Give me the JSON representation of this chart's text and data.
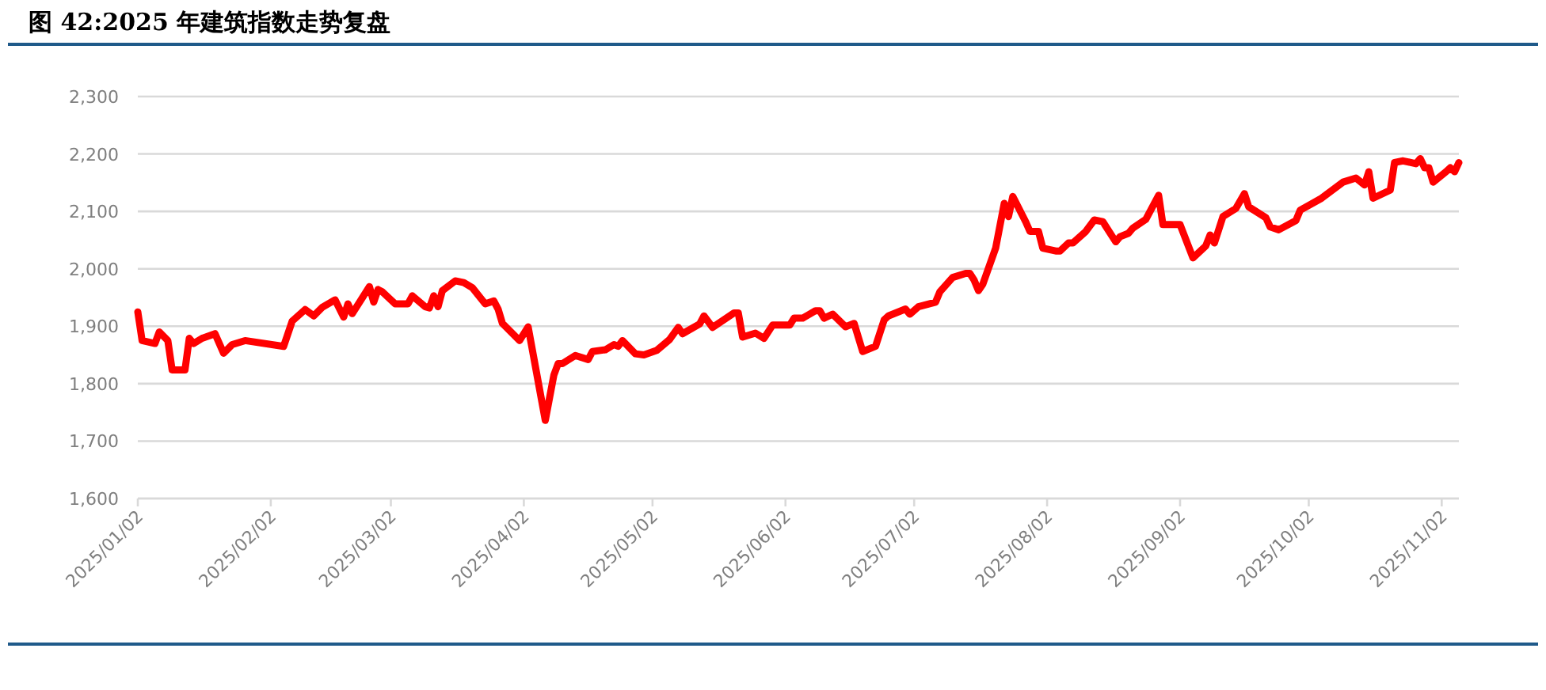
{
  "chart_data": {
    "type": "line",
    "title": "图 42:2025 年建筑指数走势复盘",
    "x": [
      "2025-01-02",
      "2025-01-03",
      "2025-01-06",
      "2025-01-07",
      "2025-01-09",
      "2025-01-10",
      "2025-01-13",
      "2025-01-14",
      "2025-01-15",
      "2025-01-17",
      "2025-01-20",
      "2025-01-22",
      "2025-01-24",
      "2025-01-27",
      "2025-02-05",
      "2025-02-07",
      "2025-02-10",
      "2025-02-12",
      "2025-02-14",
      "2025-02-17",
      "2025-02-19",
      "2025-02-20",
      "2025-02-21",
      "2025-02-25",
      "2025-02-26",
      "2025-02-27",
      "2025-02-28",
      "2025-03-03",
      "2025-03-06",
      "2025-03-07",
      "2025-03-10",
      "2025-03-11",
      "2025-03-12",
      "2025-03-13",
      "2025-03-14",
      "2025-03-17",
      "2025-03-19",
      "2025-03-21",
      "2025-03-24",
      "2025-03-26",
      "2025-03-27",
      "2025-03-28",
      "2025-04-01",
      "2025-04-03",
      "2025-04-07",
      "2025-04-09",
      "2025-04-10",
      "2025-04-11",
      "2025-04-14",
      "2025-04-17",
      "2025-04-18",
      "2025-04-21",
      "2025-04-23",
      "2025-04-24",
      "2025-04-25",
      "2025-04-28",
      "2025-04-30",
      "2025-05-03",
      "2025-05-06",
      "2025-05-08",
      "2025-05-09",
      "2025-05-13",
      "2025-05-14",
      "2025-05-16",
      "2025-05-21",
      "2025-05-22",
      "2025-05-23",
      "2025-05-26",
      "2025-05-28",
      "2025-05-30",
      "2025-06-03",
      "2025-06-04",
      "2025-06-06",
      "2025-06-09",
      "2025-06-10",
      "2025-06-11",
      "2025-06-13",
      "2025-06-16",
      "2025-06-18",
      "2025-06-20",
      "2025-06-23",
      "2025-06-25",
      "2025-06-26",
      "2025-06-30",
      "2025-07-01",
      "2025-07-03",
      "2025-07-07",
      "2025-07-08",
      "2025-07-11",
      "2025-07-14",
      "2025-07-15",
      "2025-07-16",
      "2025-07-17",
      "2025-07-18",
      "2025-07-21",
      "2025-07-23",
      "2025-07-24",
      "2025-07-25",
      "2025-07-28",
      "2025-07-29",
      "2025-07-31",
      "2025-08-01",
      "2025-08-04",
      "2025-08-05",
      "2025-08-07",
      "2025-08-08",
      "2025-08-11",
      "2025-08-13",
      "2025-08-15",
      "2025-08-18",
      "2025-08-19",
      "2025-08-21",
      "2025-08-22",
      "2025-08-25",
      "2025-08-28",
      "2025-08-29",
      "2025-09-01",
      "2025-09-02",
      "2025-09-05",
      "2025-09-08",
      "2025-09-09",
      "2025-09-10",
      "2025-09-12",
      "2025-09-15",
      "2025-09-17",
      "2025-09-18",
      "2025-09-22",
      "2025-09-23",
      "2025-09-25",
      "2025-09-29",
      "2025-09-30",
      "2025-10-05",
      "2025-10-10",
      "2025-10-13",
      "2025-10-15",
      "2025-10-16",
      "2025-10-17",
      "2025-10-21",
      "2025-10-22",
      "2025-10-24",
      "2025-10-27",
      "2025-10-28",
      "2025-10-29",
      "2025-10-30",
      "2025-10-31",
      "2025-11-03",
      "2025-11-04",
      "2025-11-05",
      "2025-11-06"
    ],
    "series": [
      {
        "color": "#ff0000",
        "values": [
          1925,
          1875,
          1870,
          1890,
          1875,
          1824,
          1824,
          1879,
          1870,
          1879,
          1887,
          1853,
          1868,
          1875,
          1865,
          1909,
          1929,
          1918,
          1933,
          1946,
          1916,
          1939,
          1922,
          1969,
          1942,
          1964,
          1960,
          1939,
          1939,
          1953,
          1934,
          1932,
          1953,
          1934,
          1962,
          1979,
          1976,
          1967,
          1939,
          1944,
          1930,
          1905,
          1875,
          1899,
          1736,
          1815,
          1835,
          1835,
          1849,
          1842,
          1856,
          1859,
          1868,
          1865,
          1875,
          1852,
          1850,
          1858,
          1877,
          1898,
          1887,
          1904,
          1918,
          1898,
          1923,
          1923,
          1881,
          1888,
          1879,
          1902,
          1902,
          1914,
          1914,
          1927,
          1927,
          1914,
          1921,
          1899,
          1905,
          1856,
          1865,
          1911,
          1918,
          1930,
          1921,
          1934,
          1942,
          1960,
          1985,
          1992,
          1992,
          1980,
          1962,
          1973,
          2036,
          2114,
          2091,
          2126,
          2082,
          2065,
          2065,
          2036,
          2031,
          2031,
          2045,
          2045,
          2065,
          2085,
          2082,
          2047,
          2056,
          2062,
          2071,
          2086,
          2128,
          2077,
          2077,
          2077,
          2019,
          2040,
          2059,
          2045,
          2091,
          2105,
          2131,
          2108,
          2089,
          2073,
          2068,
          2084,
          2102,
          2123,
          2151,
          2158,
          2146,
          2169,
          2123,
          2137,
          2185,
          2188,
          2183,
          2192,
          2176,
          2176,
          2151,
          2169,
          2176,
          2169,
          2185
        ]
      }
    ],
    "xlim": [
      "2025-01-02",
      "2025-11-06"
    ],
    "xticks": [
      {
        "value": "2025-01-02",
        "label": "2025/01/02"
      },
      {
        "value": "2025-02-02",
        "label": "2025/02/02"
      },
      {
        "value": "2025-03-02",
        "label": "2025/03/02"
      },
      {
        "value": "2025-04-02",
        "label": "2025/04/02"
      },
      {
        "value": "2025-05-02",
        "label": "2025/05/02"
      },
      {
        "value": "2025-06-02",
        "label": "2025/06/02"
      },
      {
        "value": "2025-07-02",
        "label": "2025/07/02"
      },
      {
        "value": "2025-08-02",
        "label": "2025/08/02"
      },
      {
        "value": "2025-09-02",
        "label": "2025/09/02"
      },
      {
        "value": "2025-10-02",
        "label": "2025/10/02"
      },
      {
        "value": "2025-11-02",
        "label": "2025/11/02"
      }
    ],
    "ylim": [
      1600,
      2300
    ],
    "yticks": [
      {
        "value": 1600,
        "label": "1,600"
      },
      {
        "value": 1700,
        "label": "1,700"
      },
      {
        "value": 1800,
        "label": "1,800"
      },
      {
        "value": 1900,
        "label": "1,900"
      },
      {
        "value": 2000,
        "label": "2,000"
      },
      {
        "value": 2100,
        "label": "2,100"
      },
      {
        "value": 2200,
        "label": "2,200"
      },
      {
        "value": 2300,
        "label": "2,300"
      }
    ],
    "grid": "y",
    "marker": "none",
    "line_style": "solid"
  }
}
